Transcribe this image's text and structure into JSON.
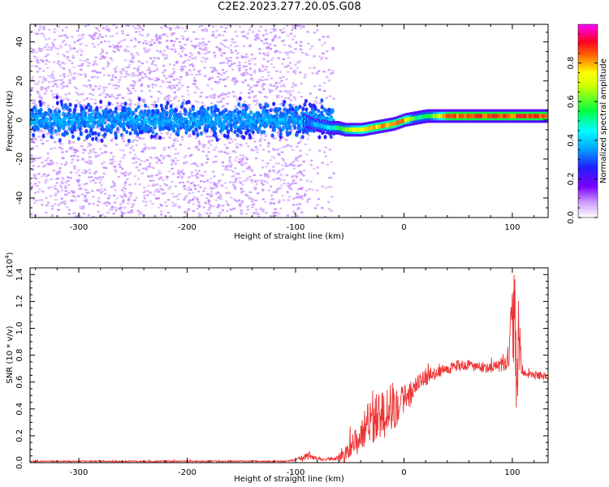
{
  "title": "C2E2.2023.277.20.05.G08",
  "colors": {
    "snr_line": "#ee3333",
    "axis": "#000000"
  },
  "chart_data": [
    {
      "type": "heatmap",
      "title": "",
      "xlabel": "Height of straight line (km)",
      "ylabel": "Frequency (Hz)",
      "xlim": [
        -345,
        133
      ],
      "ylim": [
        -50,
        49
      ],
      "x_ticks": [
        -300,
        -200,
        -100,
        0,
        100
      ],
      "x_tick_labels": [
        "-300",
        "-200",
        "-100",
        "0",
        "100"
      ],
      "y_ticks": [
        -40,
        -20,
        0,
        20,
        40
      ],
      "y_tick_labels": [
        "-40",
        "-20",
        "0",
        "20",
        "40"
      ],
      "colorbar": {
        "label": "Normalized spectral amplitude",
        "range": [
          0,
          1
        ],
        "ticks": [
          0.0,
          0.2,
          0.4,
          0.6,
          0.8
        ],
        "tick_labels": [
          "0.0",
          "0.2",
          "0.4",
          "0.6",
          "0.8"
        ],
        "colormap": "white-purple-blue-cyan-green-yellow-red-magenta"
      },
      "noise_region_x": [
        -345,
        -65
      ],
      "noise_band_hz": [
        -12,
        12
      ],
      "noise_band_amplitude": 0.2,
      "scatter_region_amplitude": 0.05,
      "ridge": {
        "x": [
          -95,
          -85,
          -78,
          -70,
          -62,
          -55,
          -48,
          -40,
          -30,
          -20,
          -10,
          0,
          10,
          20,
          40,
          60,
          80,
          100,
          133
        ],
        "y": [
          0,
          -2,
          -3,
          -4,
          -4,
          -5,
          -5,
          -5,
          -4,
          -3,
          -2,
          0,
          1,
          2,
          2,
          2,
          2,
          2,
          2
        ],
        "amplitude": [
          0.3,
          0.4,
          0.45,
          0.5,
          0.6,
          0.7,
          0.75,
          0.8,
          0.85,
          0.85,
          0.85,
          0.85,
          0.55,
          0.6,
          0.9,
          0.9,
          0.9,
          0.9,
          0.9
        ]
      }
    },
    {
      "type": "line",
      "title": "",
      "xlabel": "Height of straight line (km)",
      "ylabel": "SNR (10 * v/v)",
      "y_multiplier_label": "(x10",
      "y_multiplier_exponent": "4",
      "y_multiplier_close": ")",
      "xlim": [
        -345,
        133
      ],
      "ylim": [
        0,
        1.45
      ],
      "x_ticks": [
        -300,
        -200,
        -100,
        0,
        100
      ],
      "x_tick_labels": [
        "-300",
        "-200",
        "-100",
        "0",
        "100"
      ],
      "y_ticks": [
        0.0,
        0.2,
        0.4,
        0.6,
        0.8,
        1.0,
        1.2,
        1.4
      ],
      "y_tick_labels": [
        "0.0",
        "0.2",
        "0.4",
        "0.6",
        "0.8",
        "1.0",
        "1.2",
        "1.4"
      ],
      "series": [
        {
          "x": [
            -345,
            -300,
            -250,
            -200,
            -150,
            -110,
            -100,
            -95,
            -90,
            -85,
            -80,
            -75,
            -70,
            -65,
            -60,
            -55,
            -50,
            -45,
            -40,
            -35,
            -30,
            -25,
            -20,
            -15,
            -10,
            -5,
            0,
            5,
            10,
            15,
            20,
            30,
            40,
            50,
            60,
            70,
            80,
            90,
            95,
            98,
            100,
            102,
            104,
            106,
            108,
            110,
            115,
            120,
            125,
            133
          ],
          "y": [
            0.01,
            0.01,
            0.01,
            0.01,
            0.01,
            0.01,
            0.02,
            0.03,
            0.05,
            0.04,
            0.03,
            0.02,
            0.03,
            0.02,
            0.04,
            0.05,
            0.1,
            0.15,
            0.2,
            0.28,
            0.3,
            0.35,
            0.38,
            0.4,
            0.42,
            0.45,
            0.47,
            0.5,
            0.55,
            0.6,
            0.63,
            0.67,
            0.7,
            0.72,
            0.72,
            0.71,
            0.71,
            0.72,
            0.74,
            0.85,
            1.0,
            1.05,
            0.6,
            0.9,
            0.75,
            0.66,
            0.66,
            0.65,
            0.65,
            0.64
          ],
          "noise_amplitude": [
            0.005,
            0.005,
            0.005,
            0.005,
            0.005,
            0.005,
            0.01,
            0.02,
            0.03,
            0.02,
            0.01,
            0.01,
            0.01,
            0.01,
            0.03,
            0.05,
            0.07,
            0.1,
            0.12,
            0.15,
            0.18,
            0.2,
            0.2,
            0.2,
            0.2,
            0.15,
            0.12,
            0.1,
            0.08,
            0.07,
            0.06,
            0.04,
            0.04,
            0.04,
            0.04,
            0.04,
            0.04,
            0.05,
            0.06,
            0.2,
            0.35,
            0.4,
            0.25,
            0.3,
            0.1,
            0.03,
            0.03,
            0.03,
            0.03,
            0.03
          ]
        }
      ]
    }
  ]
}
